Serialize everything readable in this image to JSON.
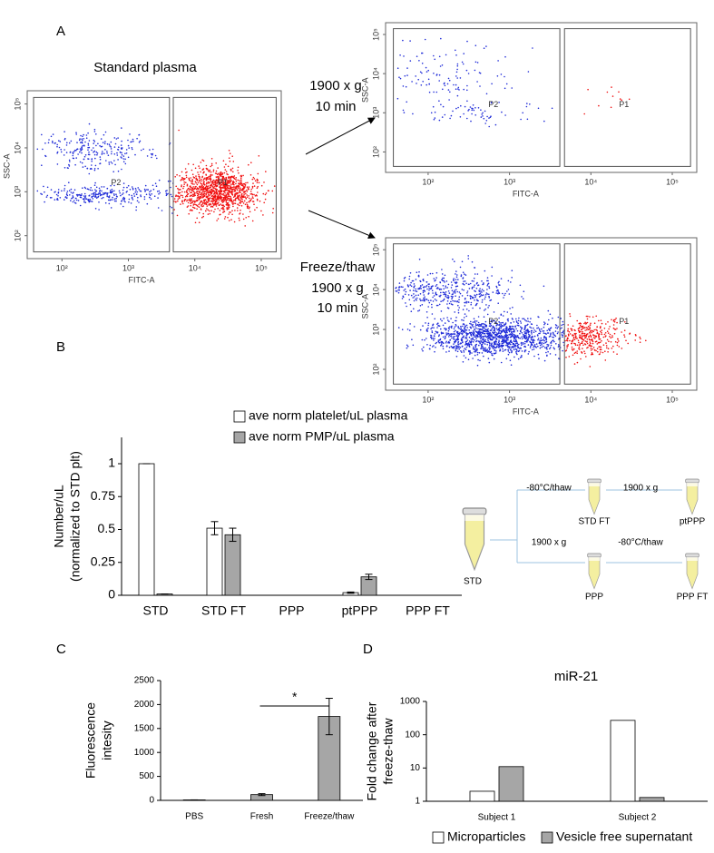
{
  "panel_labels": [
    "A",
    "B",
    "C",
    "D"
  ],
  "panel_a": {
    "standard_title": "Standard plasma",
    "step1": [
      "1900 x g",
      "10 min"
    ],
    "step2": [
      "Freeze/thaw",
      "1900 x g",
      "10 min"
    ],
    "flow_x_label": "FITC-A",
    "flow_y_label": "SSC-A",
    "flow_gates": [
      "P2",
      "P1"
    ],
    "flow_xlim": [
      30,
      200000
    ],
    "flow_ylim": [
      30,
      200000
    ],
    "flow_ticks": [
      {
        "value": 100,
        "label": "10²"
      },
      {
        "value": 1000,
        "label": "10³"
      },
      {
        "value": 10000,
        "label": "10⁴"
      },
      {
        "value": 100000,
        "label": "10⁵"
      }
    ]
  },
  "diagram": {
    "nodes": [
      {
        "label": "STD"
      },
      {
        "label": "STD FT"
      },
      {
        "label": "ptPPP"
      },
      {
        "label": "PPP"
      },
      {
        "label": "PPP FT"
      }
    ],
    "edges": [
      {
        "label": "-80°C/thaw"
      },
      {
        "label": "1900 x g"
      },
      {
        "label": "1900 x g"
      },
      {
        "label": "-80°C/thaw"
      }
    ]
  },
  "chart_data": [
    {
      "type": "bar",
      "y_label_lines": [
        "Number/uL",
        "(normalized to STD plt)"
      ],
      "categories": [
        "STD",
        "STD FT",
        "PPP",
        "ptPPP",
        "PPP FT"
      ],
      "series": [
        {
          "name": "ave norm platelet/uL plasma",
          "color": "#ffffff",
          "values": [
            1,
            0.51,
            0,
            0.02,
            0
          ],
          "errors": [
            0,
            0.05,
            0,
            0.005,
            0
          ]
        },
        {
          "name": "ave norm PMP/uL plasma",
          "color": "#a6a6a6",
          "values": [
            0.01,
            0.46,
            0,
            0.14,
            0
          ],
          "errors": [
            0,
            0.05,
            0,
            0.02,
            0
          ]
        }
      ],
      "ylim": [
        0,
        1.2
      ],
      "yticks": [
        0,
        0.25,
        0.5,
        0.75,
        1
      ],
      "legend": "top"
    },
    {
      "type": "bar",
      "y_label_lines": [
        "Fluorescence",
        "intesity"
      ],
      "categories": [
        "PBS",
        "Fresh",
        "Freeze/thaw"
      ],
      "series": [
        {
          "color": "#a6a6a6",
          "values": [
            10,
            120,
            1750
          ],
          "errors": [
            0,
            20,
            380
          ]
        }
      ],
      "ylim": [
        0,
        2500
      ],
      "yticks": [
        0,
        500,
        1000,
        1500,
        2000,
        2500
      ],
      "annotation": "*"
    },
    {
      "type": "bar",
      "title": "miR-21",
      "y_label_lines": [
        "Fold change after",
        "freeze-thaw"
      ],
      "categories": [
        "Subject 1",
        "Subject 2"
      ],
      "series": [
        {
          "name": "Microparticles",
          "color": "#ffffff",
          "values": [
            2,
            270
          ]
        },
        {
          "name": "Vesicle free supernatant",
          "color": "#a6a6a6",
          "values": [
            11,
            1.3
          ]
        }
      ],
      "log_scale": true,
      "ylim": [
        1,
        1000
      ],
      "yticks": [
        1,
        10,
        100,
        1000
      ],
      "legend": "bottom"
    }
  ]
}
